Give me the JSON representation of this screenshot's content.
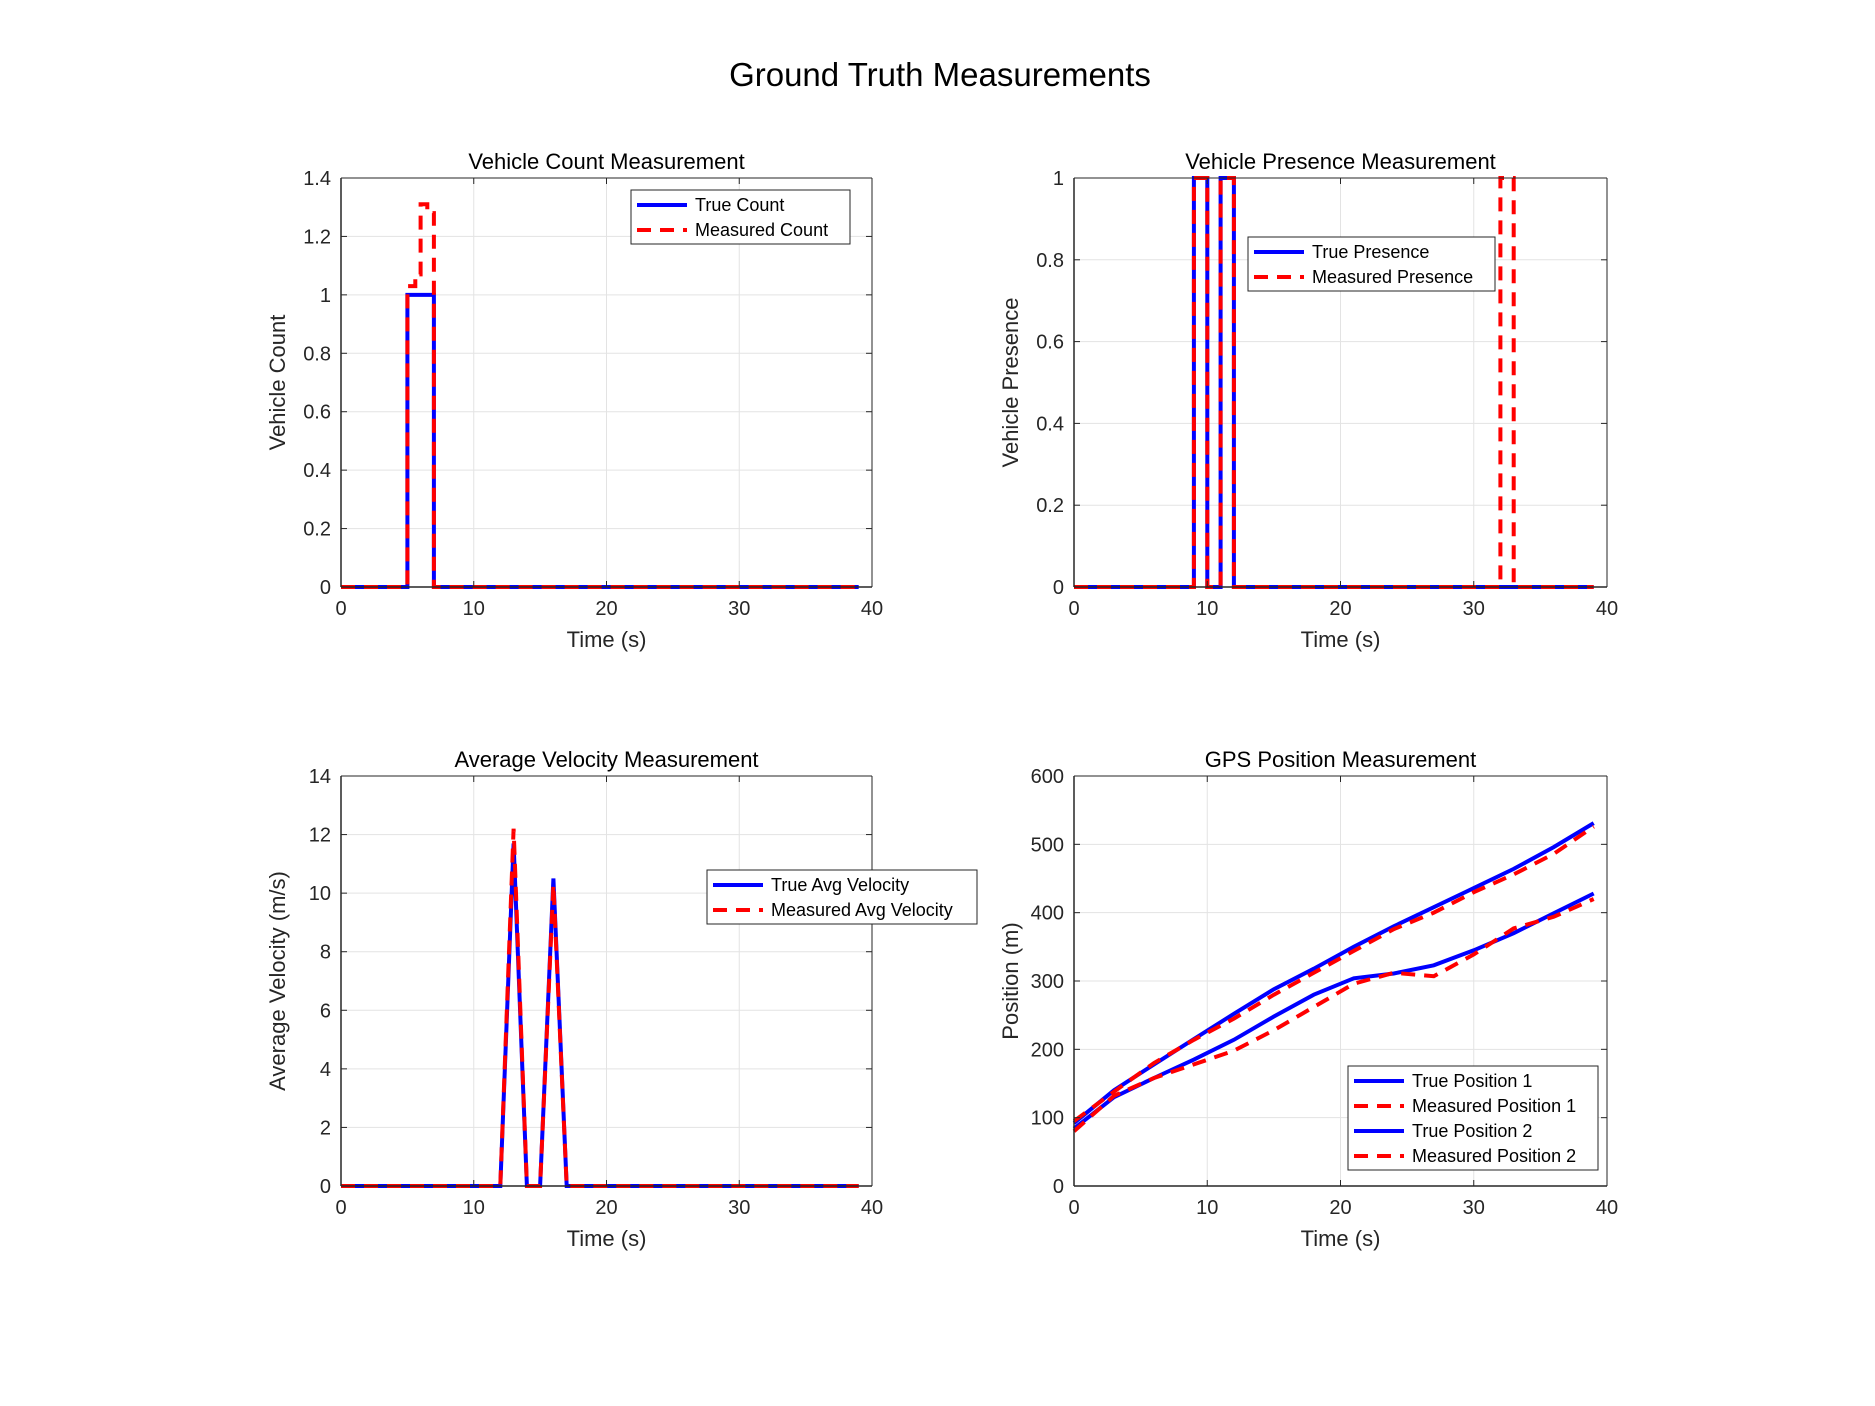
{
  "figure_title": "Ground Truth Measurements",
  "colors": {
    "true": "#0000ff",
    "measured": "#ff0000",
    "grid": "#e3e3e3",
    "axis": "#262626"
  },
  "chart_data": [
    {
      "type": "line",
      "title": "Vehicle Count Measurement",
      "xlabel": "Time (s)",
      "ylabel": "Vehicle Count",
      "xlim": [
        0,
        40
      ],
      "ylim": [
        0,
        1.4
      ],
      "xticks": [
        0,
        10,
        20,
        30,
        40
      ],
      "yticks": [
        0,
        0.2,
        0.4,
        0.6,
        0.8,
        1,
        1.2,
        1.4
      ],
      "grid": true,
      "legend_position": "top-right",
      "series": [
        {
          "name": "True Count",
          "style": "solid",
          "color": "#0000ff",
          "step": true,
          "x": [
            0,
            1,
            2,
            3,
            4,
            5,
            6,
            7,
            8,
            9,
            10,
            11,
            12,
            13,
            14,
            15,
            16,
            17,
            18,
            19,
            20,
            21,
            22,
            23,
            24,
            25,
            26,
            27,
            28,
            29,
            30,
            31,
            32,
            33,
            34,
            35,
            36,
            37,
            38,
            39
          ],
          "y": [
            0,
            0,
            0,
            0,
            0,
            1,
            1,
            0,
            0,
            0,
            0,
            0,
            0,
            0,
            0,
            0,
            0,
            0,
            0,
            0,
            0,
            0,
            0,
            0,
            0,
            0,
            0,
            0,
            0,
            0,
            0,
            0,
            0,
            0,
            0,
            0,
            0,
            0,
            0,
            0
          ]
        },
        {
          "name": "Measured Count",
          "style": "dashed",
          "color": "#ff0000",
          "step": true,
          "x": [
            0,
            1,
            2,
            3,
            4,
            5,
            5.6,
            6,
            6.5,
            7,
            8,
            9,
            10,
            11,
            12,
            13,
            14,
            15,
            16,
            17,
            18,
            19,
            20,
            21,
            22,
            23,
            24,
            25,
            26,
            27,
            28,
            29,
            30,
            31,
            32,
            33,
            34,
            35,
            36,
            37,
            38,
            39
          ],
          "y": [
            0,
            0,
            0,
            0,
            0,
            1.03,
            1.07,
            1.31,
            1.28,
            0,
            0,
            0,
            0,
            0,
            0,
            0,
            0,
            0,
            0,
            0,
            0,
            0,
            0,
            0,
            0,
            0,
            0,
            0,
            0,
            0,
            0,
            0,
            0,
            0,
            0,
            0,
            0,
            0,
            0,
            0,
            0,
            0
          ]
        }
      ]
    },
    {
      "type": "line",
      "title": "Vehicle Presence Measurement",
      "xlabel": "Time (s)",
      "ylabel": "Vehicle Presence",
      "xlim": [
        0,
        40
      ],
      "ylim": [
        0,
        1
      ],
      "xticks": [
        0,
        10,
        20,
        30,
        40
      ],
      "yticks": [
        0,
        0.2,
        0.4,
        0.6,
        0.8,
        1
      ],
      "grid": true,
      "legend_position": "upper-middle",
      "series": [
        {
          "name": "True Presence",
          "style": "solid",
          "color": "#0000ff",
          "step": true,
          "x": [
            0,
            1,
            2,
            3,
            4,
            5,
            6,
            7,
            8,
            9,
            10,
            11,
            12,
            13,
            14,
            15,
            16,
            17,
            18,
            19,
            20,
            21,
            22,
            23,
            24,
            25,
            26,
            27,
            28,
            29,
            30,
            31,
            32,
            33,
            34,
            35,
            36,
            37,
            38,
            39
          ],
          "y": [
            0,
            0,
            0,
            0,
            0,
            0,
            0,
            0,
            0,
            1,
            0,
            1,
            0,
            0,
            0,
            0,
            0,
            0,
            0,
            0,
            0,
            0,
            0,
            0,
            0,
            0,
            0,
            0,
            0,
            0,
            0,
            0,
            0,
            0,
            0,
            0,
            0,
            0,
            0,
            0
          ]
        },
        {
          "name": "Measured Presence",
          "style": "dashed",
          "color": "#ff0000",
          "step": true,
          "x": [
            0,
            1,
            2,
            3,
            4,
            5,
            6,
            7,
            8,
            9,
            10,
            11,
            12,
            13,
            14,
            15,
            16,
            17,
            18,
            19,
            20,
            21,
            22,
            23,
            24,
            25,
            26,
            27,
            28,
            29,
            30,
            31,
            32,
            33,
            34,
            35,
            36,
            37,
            38,
            39
          ],
          "y": [
            0,
            0,
            0,
            0,
            0,
            0,
            0,
            0,
            0,
            1,
            0,
            1,
            0,
            0,
            0,
            0,
            0,
            0,
            0,
            0,
            0,
            0,
            0,
            0,
            0,
            0,
            0,
            0,
            0,
            0,
            0,
            0,
            1,
            0,
            0,
            0,
            0,
            0,
            0,
            0
          ]
        }
      ]
    },
    {
      "type": "line",
      "title": "Average Velocity Measurement",
      "xlabel": "Time (s)",
      "ylabel": "Average Velocity (m/s)",
      "xlim": [
        0,
        40
      ],
      "ylim": [
        0,
        14
      ],
      "xticks": [
        0,
        10,
        20,
        30,
        40
      ],
      "yticks": [
        0,
        2,
        4,
        6,
        8,
        10,
        12,
        14
      ],
      "grid": true,
      "legend_position": "right",
      "series": [
        {
          "name": "True Avg Velocity",
          "style": "solid",
          "color": "#0000ff",
          "step": false,
          "x": [
            0,
            12,
            13,
            14,
            15,
            16,
            17,
            39
          ],
          "y": [
            0,
            0,
            11.7,
            0,
            0,
            10.5,
            0,
            0
          ]
        },
        {
          "name": "Measured Avg Velocity",
          "style": "dashed",
          "color": "#ff0000",
          "step": false,
          "x": [
            0,
            12,
            13,
            14,
            15,
            16,
            17,
            39
          ],
          "y": [
            0,
            0,
            12.2,
            0,
            0,
            10.3,
            0,
            0
          ]
        }
      ]
    },
    {
      "type": "line",
      "title": "GPS Position Measurement",
      "xlabel": "Time (s)",
      "ylabel": "Position (m)",
      "xlim": [
        0,
        40
      ],
      "ylim": [
        0,
        600
      ],
      "xticks": [
        0,
        10,
        20,
        30,
        40
      ],
      "yticks": [
        0,
        100,
        200,
        300,
        400,
        500,
        600
      ],
      "grid": true,
      "legend_position": "bottom-right",
      "series": [
        {
          "name": "True Position 1",
          "style": "solid",
          "color": "#0000ff",
          "step": false,
          "x": [
            0,
            3,
            6,
            9,
            12,
            15,
            18,
            21,
            24,
            27,
            30,
            33,
            36,
            39
          ],
          "y": [
            92,
            140,
            178,
            215,
            252,
            288,
            318,
            350,
            380,
            408,
            436,
            464,
            496,
            531
          ]
        },
        {
          "name": "Measured Position 1",
          "style": "dashed",
          "color": "#ff0000",
          "step": false,
          "x": [
            0,
            3,
            6,
            9,
            12,
            15,
            18,
            21,
            24,
            27,
            30,
            33,
            36,
            39
          ],
          "y": [
            95,
            138,
            180,
            214,
            245,
            280,
            312,
            344,
            376,
            400,
            430,
            456,
            486,
            526
          ]
        },
        {
          "name": "True Position 2",
          "style": "solid",
          "color": "#0000ff",
          "step": false,
          "x": [
            0,
            3,
            6,
            9,
            12,
            15,
            18,
            21,
            24,
            27,
            30,
            33,
            36,
            39
          ],
          "y": [
            84,
            130,
            158,
            185,
            214,
            248,
            280,
            304,
            311,
            323,
            345,
            370,
            399,
            428
          ]
        },
        {
          "name": "Measured Position 2",
          "style": "dashed",
          "color": "#ff0000",
          "step": false,
          "x": [
            0,
            3,
            6,
            9,
            12,
            15,
            18,
            21,
            24,
            27,
            30,
            33,
            36,
            39
          ],
          "y": [
            80,
            132,
            158,
            178,
            198,
            228,
            262,
            296,
            312,
            307,
            339,
            377,
            394,
            420
          ]
        }
      ]
    }
  ]
}
